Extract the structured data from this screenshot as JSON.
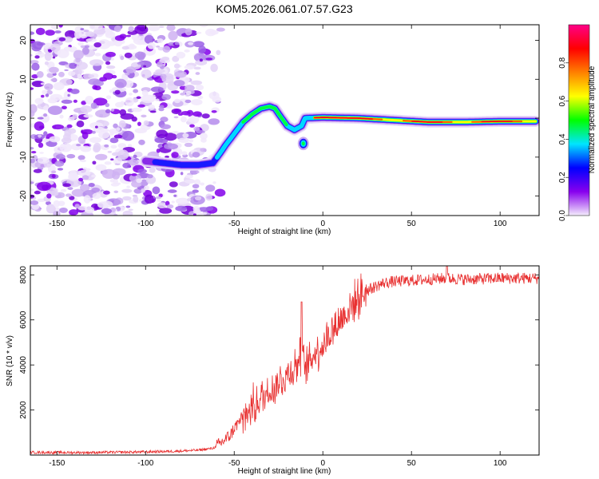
{
  "chart_data": [
    {
      "type": "heatmap",
      "title": "KOM5.2026.061.07.57.G23",
      "xlabel": "Height of straight line (km)",
      "ylabel": "Frequency (Hz)",
      "xlim": [
        -165,
        122
      ],
      "ylim": [
        -25,
        24
      ],
      "xticks": [
        -150,
        -100,
        -50,
        0,
        50,
        100
      ],
      "yticks": [
        -20,
        -10,
        0,
        10,
        20
      ],
      "ridge": {
        "description": "Frequency of peak spectral amplitude versus height",
        "x": [
          -100,
          -90,
          -80,
          -70,
          -62,
          -58,
          -55,
          -50,
          -45,
          -40,
          -35,
          -30,
          -27,
          -24,
          -20,
          -16,
          -12,
          -10,
          0,
          20,
          40,
          60,
          80,
          100,
          120
        ],
        "y": [
          -11,
          -11.5,
          -12,
          -12,
          -11.5,
          -9,
          -7,
          -4,
          -1,
          1,
          2.5,
          3,
          2.5,
          0.5,
          -2,
          -3,
          -2,
          0,
          0.2,
          0,
          -0.5,
          -1,
          -1,
          -0.8,
          -0.8
        ]
      },
      "colorbar": {
        "label": "Normalized spectral amplitude",
        "range": [
          0,
          1
        ],
        "ticks": [
          "0.0",
          "0.2",
          "0.4",
          "0.6",
          "0.8"
        ],
        "colors": [
          "#f4eefc",
          "#8800ee",
          "#0000ff",
          "#00e5ff",
          "#00ff00",
          "#ffff00",
          "#ff8000",
          "#ff0000",
          "#ff0088"
        ]
      }
    },
    {
      "type": "line",
      "xlabel": "Height of straight line (km)",
      "ylabel": "SNR (10 * v/v)",
      "xlim": [
        -165,
        122
      ],
      "ylim": [
        0,
        8400
      ],
      "xticks": [
        -150,
        -100,
        -50,
        0,
        50,
        100
      ],
      "yticks": [
        2000,
        4000,
        6000,
        8000
      ],
      "series": [
        {
          "name": "SNR",
          "color": "#e83030",
          "x": [
            -165,
            -140,
            -120,
            -100,
            -80,
            -70,
            -62,
            -58,
            -55,
            -52,
            -50,
            -45,
            -40,
            -35,
            -32,
            -30,
            -25,
            -20,
            -15,
            -12,
            -10,
            -5,
            0,
            5,
            10,
            15,
            20,
            25,
            30,
            35,
            40,
            50,
            60,
            70,
            80,
            100,
            122
          ],
          "y": [
            120,
            110,
            120,
            140,
            180,
            220,
            300,
            500,
            700,
            900,
            1200,
            1700,
            2100,
            2500,
            2700,
            2900,
            3200,
            3600,
            4000,
            4400,
            3800,
            4500,
            4900,
            5500,
            6000,
            6500,
            7000,
            7300,
            7500,
            7650,
            7700,
            7750,
            7800,
            7850,
            7800,
            7850,
            7850
          ]
        }
      ]
    }
  ]
}
